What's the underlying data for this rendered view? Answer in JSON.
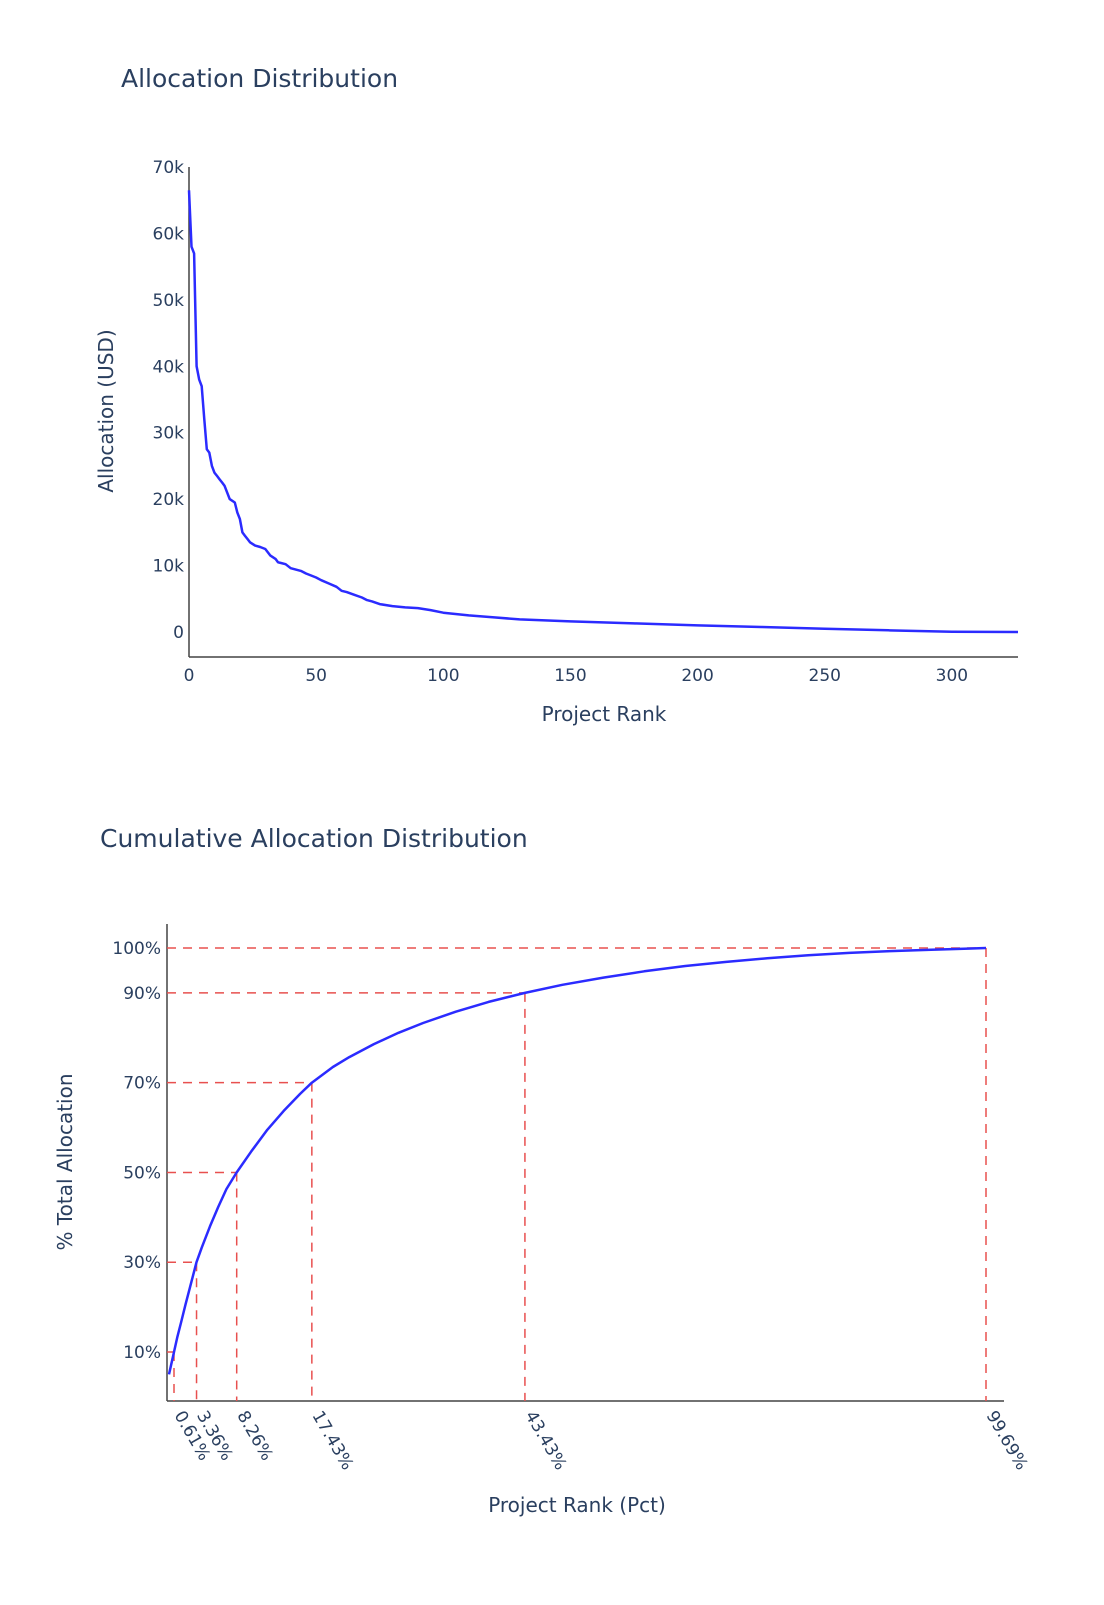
{
  "chart_data": [
    {
      "type": "line",
      "title": "Allocation Distribution",
      "xlabel": "Project Rank",
      "ylabel": "Allocation (USD)",
      "xlim": [
        0,
        326
      ],
      "ylim": [
        -4000,
        70000
      ],
      "x_ticks": [
        0,
        50,
        100,
        150,
        200,
        250,
        300
      ],
      "y_ticks": [
        {
          "value": 0,
          "label": "0"
        },
        {
          "value": 10000,
          "label": "10k"
        },
        {
          "value": 20000,
          "label": "20k"
        },
        {
          "value": 30000,
          "label": "30k"
        },
        {
          "value": 40000,
          "label": "40k"
        },
        {
          "value": 50000,
          "label": "50k"
        },
        {
          "value": 60000,
          "label": "60k"
        },
        {
          "value": 70000,
          "label": "70k"
        }
      ],
      "line_color": "#2b2bff",
      "series": [
        {
          "x": [
            0,
            1,
            2,
            3,
            4,
            5,
            6,
            7,
            8,
            9,
            10,
            11,
            12,
            13,
            14,
            16,
            18,
            19,
            20,
            21,
            22,
            23,
            24,
            26,
            28,
            30,
            32,
            34,
            35,
            36,
            38,
            40,
            42,
            44,
            46,
            48,
            50,
            52,
            55,
            58,
            60,
            62,
            65,
            68,
            70,
            72,
            75,
            80,
            85,
            90,
            95,
            100,
            110,
            120,
            130,
            150,
            175,
            200,
            225,
            250,
            275,
            300,
            326
          ],
          "values": [
            66500,
            58000,
            57000,
            40000,
            38000,
            37000,
            32000,
            27500,
            27000,
            25000,
            24000,
            23500,
            23000,
            22500,
            22000,
            20000,
            19500,
            18000,
            17000,
            15000,
            14500,
            14000,
            13500,
            13000,
            12800,
            12500,
            11500,
            11000,
            10500,
            10400,
            10200,
            9600,
            9400,
            9200,
            8800,
            8500,
            8200,
            7800,
            7300,
            6800,
            6200,
            6000,
            5600,
            5200,
            4800,
            4600,
            4200,
            3900,
            3700,
            3600,
            3300,
            2900,
            2500,
            2200,
            1900,
            1600,
            1300,
            1000,
            750,
            500,
            250,
            40,
            0
          ]
        }
      ]
    },
    {
      "type": "line",
      "title": "Cumulative Allocation Distribution",
      "xlabel": "Project Rank (Pct)",
      "ylabel": "% Total Allocation",
      "xlim": [
        0,
        100
      ],
      "ylim": [
        0,
        105.5
      ],
      "y_ticks": [
        {
          "value": 10,
          "label": "10%"
        },
        {
          "value": 30,
          "label": "30%"
        },
        {
          "value": 50,
          "label": "50%"
        },
        {
          "value": 70,
          "label": "70%"
        },
        {
          "value": 90,
          "label": "90%"
        },
        {
          "value": 100,
          "label": "100%"
        }
      ],
      "x_ticks": [
        {
          "value": 0.61,
          "label": "0.61%"
        },
        {
          "value": 3.36,
          "label": "3.36%"
        },
        {
          "value": 8.26,
          "label": "8.26%"
        },
        {
          "value": 17.43,
          "label": "17.43%"
        },
        {
          "value": 43.43,
          "label": "43.43%"
        },
        {
          "value": 99.69,
          "label": "99.69%"
        }
      ],
      "reference_points": [
        {
          "x": 0.61,
          "y": 10
        },
        {
          "x": 3.36,
          "y": 30
        },
        {
          "x": 8.26,
          "y": 50
        },
        {
          "x": 17.43,
          "y": 70
        },
        {
          "x": 43.43,
          "y": 90
        },
        {
          "x": 99.69,
          "y": 100
        }
      ],
      "line_color": "#2b2bff",
      "reference_line_color": "#e8504f",
      "series": [
        {
          "x": [
            0,
            0.31,
            0.61,
            1,
            1.5,
            2,
            2.5,
            3.36,
            4,
            5,
            6,
            7,
            8.26,
            10,
            12,
            14,
            16,
            17.43,
            20,
            22,
            25,
            28,
            31,
            35,
            39,
            43.43,
            48,
            53,
            58,
            63,
            68,
            73,
            78,
            83,
            88,
            93,
            97,
            99.69
          ],
          "values": [
            5,
            7.5,
            10,
            13.2,
            16.8,
            20.5,
            24,
            30,
            33.3,
            38,
            42.3,
            46.3,
            50,
            54.6,
            59.5,
            63.7,
            67.5,
            70,
            73.5,
            75.7,
            78.6,
            81.1,
            83.3,
            85.8,
            88,
            90,
            91.8,
            93.4,
            94.8,
            96,
            96.9,
            97.7,
            98.4,
            98.9,
            99.3,
            99.6,
            99.85,
            100
          ]
        }
      ]
    }
  ]
}
